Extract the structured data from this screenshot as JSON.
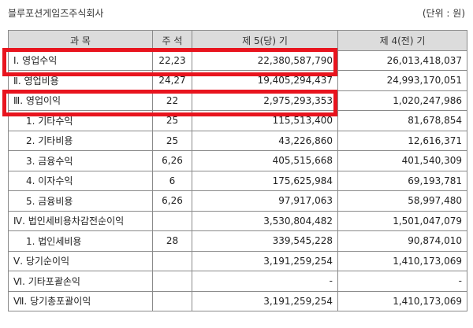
{
  "header": {
    "company": "블루포션게임즈주식회사",
    "unit": "(단위 : 원)"
  },
  "table": {
    "columns": [
      "과 목",
      "주 석",
      "제 5(당) 기",
      "제 4(전) 기"
    ],
    "rows": [
      {
        "item": "Ⅰ. 영업수익",
        "note": "22,23",
        "current": "22,380,587,790",
        "prior": "26,013,418,037"
      },
      {
        "item": "Ⅱ. 영업비용",
        "note": "24,27",
        "current": "19,405,294,437",
        "prior": "24,993,170,051"
      },
      {
        "item": "Ⅲ. 영업이익",
        "note": "22",
        "current": "2,975,293,353",
        "prior": "1,020,247,986"
      },
      {
        "item": "1. 기타수익",
        "note": "25",
        "current": "115,513,400",
        "prior": "81,678,854"
      },
      {
        "item": "2. 기타비용",
        "note": "25",
        "current": "43,226,860",
        "prior": "12,616,371"
      },
      {
        "item": "3. 금융수익",
        "note": "6,26",
        "current": "405,515,668",
        "prior": "401,540,309"
      },
      {
        "item": "4. 이자수익",
        "note": "6",
        "current": "175,625,984",
        "prior": "69,193,781"
      },
      {
        "item": "5. 금융비용",
        "note": "6,26",
        "current": "97,917,063",
        "prior": "58,997,480"
      },
      {
        "item": "Ⅳ. 법인세비용차감전순이익",
        "note": "",
        "current": "3,530,804,482",
        "prior": "1,501,047,079"
      },
      {
        "item": "1. 법인세비용",
        "note": "28",
        "current": "339,545,228",
        "prior": "90,874,010"
      },
      {
        "item": "Ⅴ. 당기순이익",
        "note": "",
        "current": "3,191,259,254",
        "prior": "1,410,173,069"
      },
      {
        "item": "Ⅵ. 기타포괄손익",
        "note": "",
        "current": "-",
        "prior": "-"
      },
      {
        "item": "Ⅶ. 당기총포괄이익",
        "note": "",
        "current": "3,191,259,254",
        "prior": "1,410,173,069"
      }
    ]
  },
  "highlight_color": "#e8141e"
}
